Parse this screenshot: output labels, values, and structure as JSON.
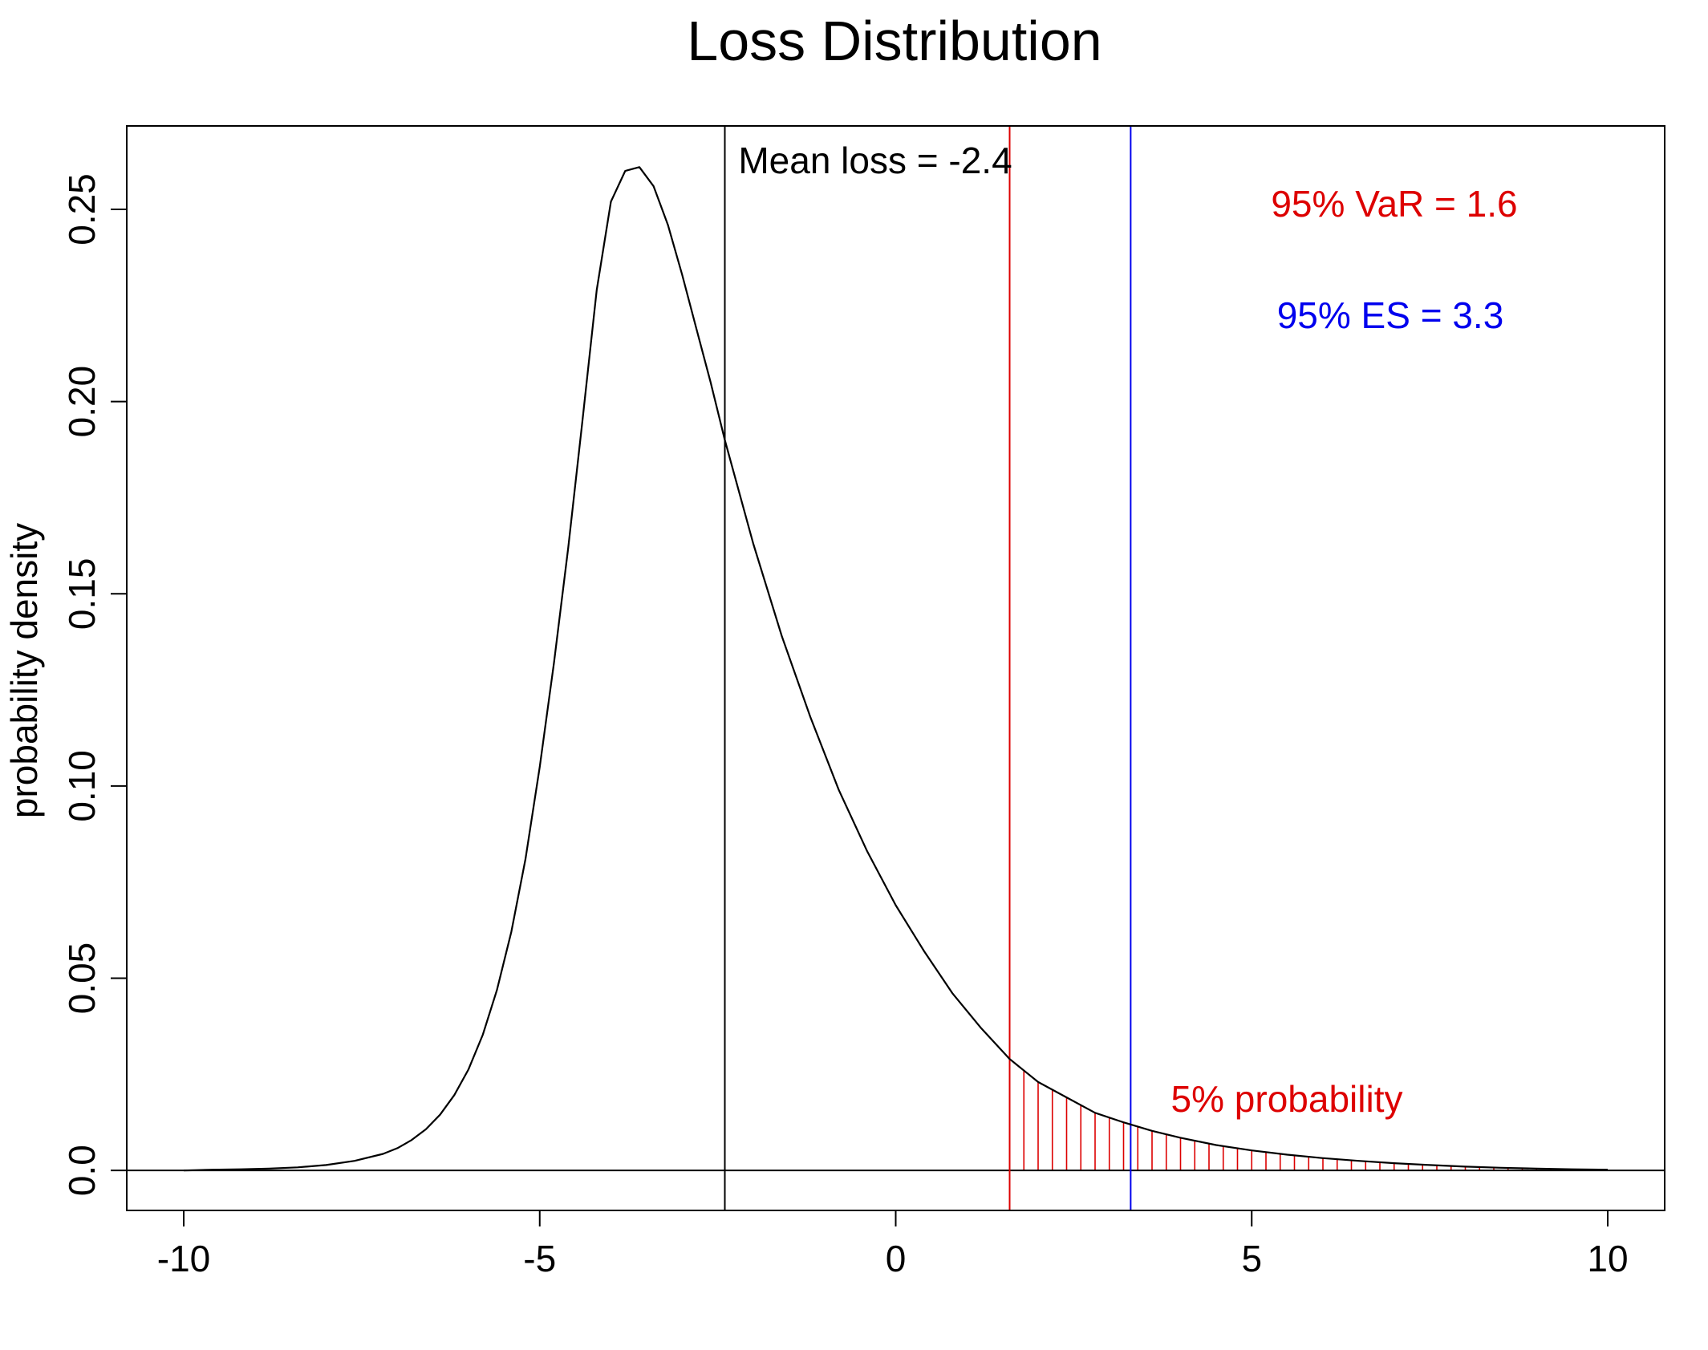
{
  "chart_data": {
    "type": "line",
    "title": "Loss Distribution",
    "xlabel": "",
    "ylabel": "probability density",
    "xlim": [
      -10.8,
      10.8
    ],
    "ylim": [
      -0.0104,
      0.2717
    ],
    "x_ticks": [
      -10,
      -5,
      0,
      5,
      10
    ],
    "x_tick_labels": [
      "-10",
      "-5",
      "0",
      "5",
      "10"
    ],
    "y_ticks": [
      0.0,
      0.05,
      0.1,
      0.15,
      0.2,
      0.25
    ],
    "y_tick_labels": [
      "0.0",
      "0.05",
      "0.10",
      "0.15",
      "0.20",
      "0.25"
    ],
    "grid": false,
    "series": [
      {
        "color": "#000000",
        "x": [
          -10,
          -9.6,
          -9.2,
          -8.8,
          -8.4,
          -8.0,
          -7.6,
          -7.2,
          -7.0,
          -6.8,
          -6.6,
          -6.4,
          -6.2,
          -6.0,
          -5.8,
          -5.6,
          -5.4,
          -5.2,
          -5.0,
          -4.8,
          -4.6,
          -4.4,
          -4.2,
          -4.0,
          -3.8,
          -3.6,
          -3.4,
          -3.2,
          -3.0,
          -2.8,
          -2.6,
          -2.4,
          -2.0,
          -1.6,
          -1.2,
          -0.8,
          -0.4,
          0.0,
          0.4,
          0.8,
          1.2,
          1.6,
          2.0,
          2.4,
          2.8,
          3.2,
          3.6,
          4.0,
          4.5,
          5.0,
          5.5,
          6.0,
          6.5,
          7.0,
          7.5,
          8.0,
          8.5,
          9.0,
          9.5,
          10.0
        ],
        "y": [
          0.0,
          0.0002,
          0.0003,
          0.0005,
          0.0008,
          0.0014,
          0.0025,
          0.0043,
          0.0058,
          0.0079,
          0.0107,
          0.0145,
          0.0196,
          0.0263,
          0.0353,
          0.047,
          0.062,
          0.081,
          0.105,
          0.132,
          0.162,
          0.195,
          0.229,
          0.252,
          0.26,
          0.261,
          0.256,
          0.246,
          0.233,
          0.219,
          0.205,
          0.19,
          0.163,
          0.139,
          0.118,
          0.099,
          0.083,
          0.069,
          0.057,
          0.046,
          0.037,
          0.029,
          0.023,
          0.019,
          0.015,
          0.0125,
          0.0103,
          0.0085,
          0.0066,
          0.0052,
          0.0041,
          0.0032,
          0.0025,
          0.0019,
          0.0014,
          0.001,
          0.0007,
          0.0005,
          0.0003,
          0.0002
        ]
      }
    ],
    "reference_lines": [
      {
        "x": -2.4,
        "color": "#000000",
        "label": "Mean loss = -2.4"
      },
      {
        "x": 1.6,
        "color": "#dd0000",
        "label": "95% VaR = 1.6"
      },
      {
        "x": 3.3,
        "color": "#0000ee",
        "label": "95% ES = 3.3"
      }
    ],
    "shaded_region": {
      "from": 1.6,
      "to": 10.0,
      "color": "#dd0000",
      "label": "5% probability"
    },
    "baseline_y": 0.0,
    "annotations": {
      "mean_label": "Mean loss = -2.4",
      "var_label": "95% VaR = 1.6",
      "es_label": "95% ES = 3.3",
      "tail_label": "5% probability"
    }
  }
}
